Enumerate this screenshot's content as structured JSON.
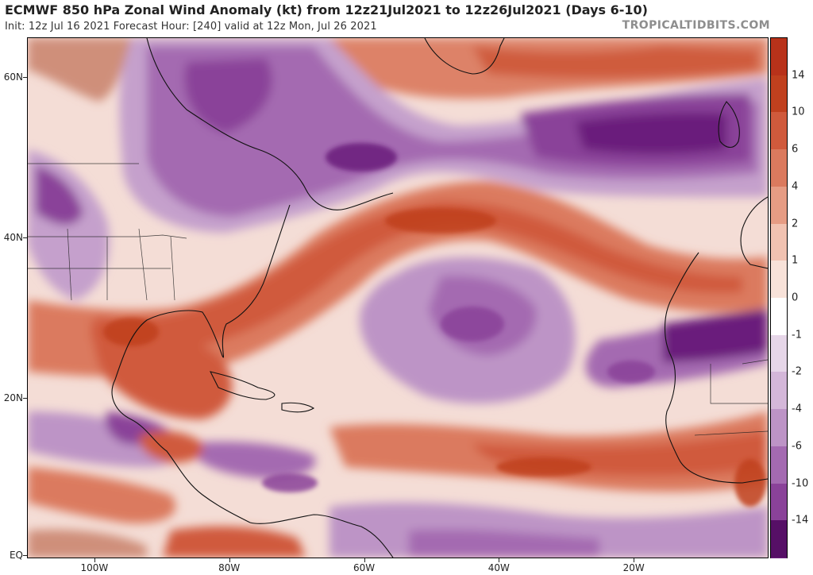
{
  "header": {
    "title": "ECMWF 850 hPa Zonal Wind Anomaly (kt) from 12z21Jul2021 to 12z26Jul2021 (Days 6-10)",
    "subtitle": "Init: 12z Jul 16 2021   Forecast Hour: [240]   valid at 12z Mon, Jul 26 2021",
    "brand": "TROPICALTIDBITS.COM"
  },
  "map": {
    "lon_range": [
      -110,
      0
    ],
    "lat_range": [
      0,
      65
    ],
    "lat_labels": [
      {
        "lat": 60,
        "text": "60N"
      },
      {
        "lat": 40,
        "text": "40N"
      },
      {
        "lat": 20,
        "text": "20N"
      },
      {
        "lat": 0,
        "text": "EQ"
      }
    ],
    "lon_labels": [
      {
        "lon": -100,
        "text": "100W"
      },
      {
        "lon": -80,
        "text": "80W"
      },
      {
        "lon": -60,
        "text": "60W"
      },
      {
        "lon": -40,
        "text": "40W"
      },
      {
        "lon": -20,
        "text": "20W"
      }
    ]
  },
  "colorbar": {
    "levels": [
      {
        "label": "14",
        "value": 14,
        "color": "#c0401e"
      },
      {
        "label": "10",
        "value": 10,
        "color": "#d05a3c"
      },
      {
        "label": "6",
        "value": 6,
        "color": "#db7a5e"
      },
      {
        "label": "4",
        "value": 4,
        "color": "#e69c84"
      },
      {
        "label": "2",
        "value": 2,
        "color": "#f1c2b1"
      },
      {
        "label": "1",
        "value": 1,
        "color": "#f8e2d9"
      },
      {
        "label": "0",
        "value": 0,
        "color": "#ffffff"
      },
      {
        "label": "-1",
        "value": -1,
        "color": "#e6d6e8"
      },
      {
        "label": "-2",
        "value": -2,
        "color": "#d4b7d9"
      },
      {
        "label": "-4",
        "value": -4,
        "color": "#bd94c6"
      },
      {
        "label": "-6",
        "value": -6,
        "color": "#a46ab1"
      },
      {
        "label": "-10",
        "value": -10,
        "color": "#8a4299"
      },
      {
        "label": "-14",
        "value": -14,
        "color": "#6b1f7c"
      }
    ],
    "top_color": "#b8321a",
    "bottom_color": "#560f66"
  }
}
